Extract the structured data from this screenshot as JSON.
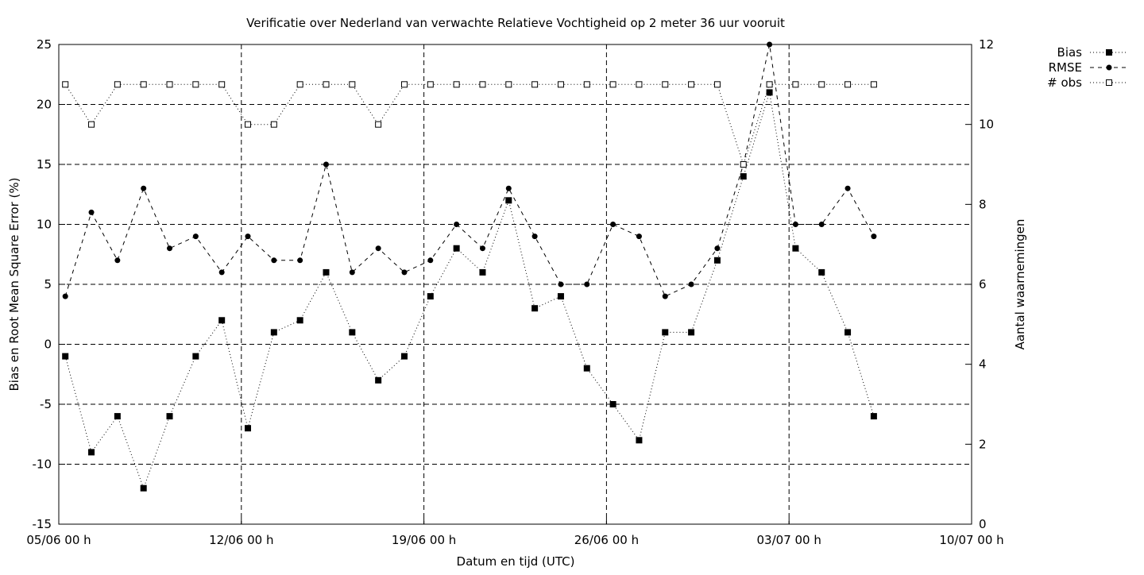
{
  "chart_data": {
    "type": "line",
    "title": "Verificatie over Nederland van verwachte Relatieve Vochtigheid op 2 meter 36 uur vooruit",
    "xlabel": "Datum en tijd (UTC)",
    "ylabel": "Bias en Root Mean Square Error (%)",
    "y2label": "Aantal waarnemingen",
    "xlim": [
      0,
      35
    ],
    "ylim": [
      -15,
      25
    ],
    "y2lim": [
      0,
      12
    ],
    "x_ticks": [
      {
        "x": 0,
        "label": "05/06 00 h"
      },
      {
        "x": 7,
        "label": "12/06 00 h"
      },
      {
        "x": 14,
        "label": "19/06 00 h"
      },
      {
        "x": 21,
        "label": "26/06 00 h"
      },
      {
        "x": 28,
        "label": "03/07 00 h"
      },
      {
        "x": 35,
        "label": "10/07 00 h"
      }
    ],
    "y_ticks": [
      -15,
      -10,
      -5,
      0,
      5,
      10,
      15,
      20,
      25
    ],
    "y2_ticks": [
      0,
      2,
      4,
      6,
      8,
      10,
      12
    ],
    "grid": true,
    "legend_position": "outside top-right",
    "x_days": [
      0.25,
      1.25,
      2.25,
      3.25,
      4.25,
      5.25,
      6.25,
      7.25,
      8.25,
      9.25,
      10.25,
      11.25,
      12.25,
      13.25,
      14.25,
      15.25,
      16.25,
      17.25,
      18.25,
      19.25,
      20.25,
      21.25,
      22.25,
      23.25,
      24.25,
      25.25,
      26.25,
      27.25,
      28.25,
      29.25,
      30.25,
      31.25
    ],
    "series": [
      {
        "name": "Bias",
        "axis": "left",
        "marker": "filled-square",
        "line": "dotted",
        "values": [
          -1,
          -9,
          -6,
          -12,
          -6,
          -1,
          2,
          -7,
          1,
          2,
          6,
          1,
          -3,
          -1,
          4,
          8,
          6,
          12,
          3,
          4,
          -2,
          -5,
          -8,
          1,
          1,
          7,
          14,
          21,
          8,
          6,
          1,
          -6
        ]
      },
      {
        "name": "RMSE",
        "axis": "left",
        "marker": "filled-circle",
        "line": "dashed",
        "values": [
          4,
          11,
          7,
          13,
          8,
          9,
          6,
          9,
          7,
          7,
          15,
          6,
          8,
          6,
          7,
          10,
          8,
          13,
          9,
          5,
          5,
          10,
          9,
          4,
          5,
          8,
          15,
          25,
          10,
          10,
          13,
          9
        ]
      },
      {
        "name": "# obs",
        "axis": "right",
        "marker": "open-square",
        "line": "dotted",
        "values": [
          11,
          10,
          11,
          11,
          11,
          11,
          11,
          10,
          10,
          11,
          11,
          11,
          10,
          11,
          11,
          11,
          11,
          11,
          11,
          11,
          11,
          11,
          11,
          11,
          11,
          11,
          9,
          11,
          11,
          11,
          11,
          11
        ]
      }
    ]
  },
  "colors": {
    "ink": "#000000",
    "background": "#ffffff"
  }
}
